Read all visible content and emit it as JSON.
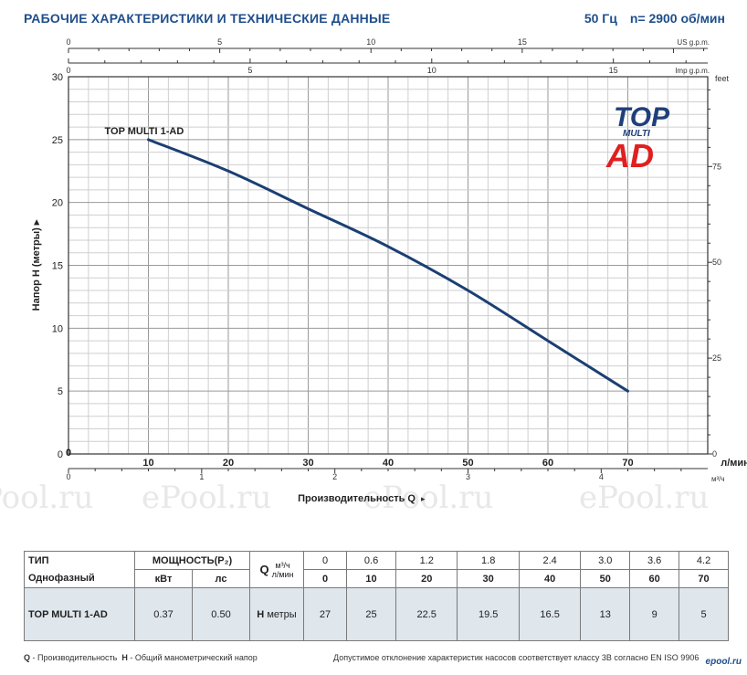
{
  "header": {
    "title": "РАБОЧИЕ ХАРАКТЕРИСТИКИ И ТЕХНИЧЕСКИЕ ДАННЫЕ",
    "freq": "50 Гц",
    "speed": "n= 2900 об/мин"
  },
  "logo": {
    "top": "TOP",
    "multi": "MULTI",
    "ad": "AD"
  },
  "watermark": "ePool.ru",
  "chart_data": {
    "type": "line",
    "series": [
      {
        "name": "TOP MULTI 1-AD",
        "x": [
          10,
          20,
          30,
          40,
          50,
          60,
          70
        ],
        "y": [
          25,
          22.5,
          19.5,
          16.5,
          13,
          9,
          5
        ]
      }
    ],
    "xlabel": "Производительность Q",
    "ylabel": "Напор Н (метры)",
    "xunit": "л/мин",
    "xlim": [
      0,
      80
    ],
    "ylim": [
      0,
      30
    ],
    "x_ticks": [
      "0",
      "10",
      "20",
      "30",
      "40",
      "50",
      "60",
      "70"
    ],
    "y_ticks": [
      "0",
      "5",
      "10",
      "15",
      "20",
      "25",
      "30"
    ],
    "secondary_axes": {
      "m3h": {
        "unit": "м³/ч",
        "ticks": [
          0,
          1,
          2,
          3,
          4
        ],
        "labels": [
          "0",
          "1",
          "2",
          "3",
          "4"
        ]
      },
      "us_gpm": {
        "unit": "US g.p.m.",
        "ticks": [
          0,
          5,
          10,
          15
        ],
        "labels": [
          "0",
          "5",
          "10",
          "15"
        ]
      },
      "imp_gpm": {
        "unit": "Imp g.p.m.",
        "ticks": [
          0,
          5,
          10,
          15
        ],
        "labels": [
          "0",
          "5",
          "10",
          "15"
        ]
      },
      "feet": {
        "unit": "feet",
        "ticks": [
          0,
          25,
          50,
          75
        ],
        "labels": [
          "0",
          "25",
          "50",
          "75"
        ]
      }
    },
    "grid": true
  },
  "table": {
    "type_label": "ТИП",
    "phase_label": "Однофазный",
    "power_label": "МОЩНОСТЬ(P₂)",
    "kw_label": "кВт",
    "hp_label": "лс",
    "q_letter": "Q",
    "q_unit_m3": "м³/ч",
    "q_unit_lmin": "л/мин",
    "q_m3h": [
      "0",
      "0.6",
      "1.2",
      "1.8",
      "2.4",
      "3.0",
      "3.6",
      "4.2"
    ],
    "q_lmin": [
      "0",
      "10",
      "20",
      "30",
      "40",
      "50",
      "60",
      "70"
    ],
    "row": {
      "model": "TOP MULTI 1-AD",
      "kw": "0.37",
      "hp": "0.50",
      "h_letter": "H",
      "h_unit": "метры",
      "heads": [
        "27",
        "25",
        "22.5",
        "19.5",
        "16.5",
        "13",
        "9",
        "5"
      ]
    }
  },
  "footer": {
    "q_key": "Q",
    "q_desc": " - Производительность",
    "h_key": "H",
    "h_desc": " - Общий манометрический напор",
    "note": "Допустимое отклонение характеристик насосов соответствует классу 3В согласно EN ISO 9906",
    "brand": "epool.ru"
  }
}
